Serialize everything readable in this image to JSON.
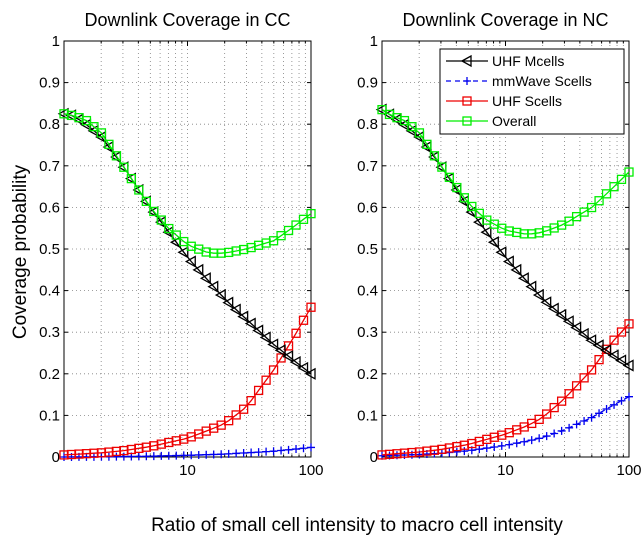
{
  "figure": {
    "ylabel": "Coverage probability",
    "xlabel": "Ratio of small cell intensity to macro cell intensity"
  },
  "chart_data": [
    {
      "type": "line",
      "title": "Downlink Coverage in CC",
      "xscale": "log",
      "xlim": [
        1,
        100
      ],
      "ylim": [
        0,
        1
      ],
      "xticks": [
        10,
        100
      ],
      "yticks": [
        0,
        0.1,
        0.2,
        0.3,
        0.4,
        0.5,
        0.6,
        0.7,
        0.8,
        0.9,
        1
      ],
      "ytick_labels": [
        "0",
        "0.1",
        "0.2",
        "0.3",
        "0.4",
        "0.5",
        "0.6",
        "0.7",
        "0.8",
        "0.9",
        "1"
      ],
      "xtick_labels": [
        "10",
        "100"
      ],
      "grid": true,
      "series": [
        {
          "name": "UHF Mcells",
          "color": "#000000",
          "marker": "triangle-left",
          "dash": "solid",
          "x": [
            1,
            1.2,
            1.5,
            2,
            3,
            5,
            10,
            20,
            50,
            100
          ],
          "y": [
            0.825,
            0.82,
            0.8,
            0.77,
            0.7,
            0.6,
            0.48,
            0.38,
            0.27,
            0.2
          ]
        },
        {
          "name": "mmWave Scells",
          "color": "#0000ee",
          "marker": "plus",
          "dash": "dashed",
          "x": [
            1,
            2,
            3,
            5,
            10,
            20,
            30,
            50,
            70,
            100
          ],
          "y": [
            0.0,
            0.0005,
            0.001,
            0.002,
            0.004,
            0.007,
            0.01,
            0.014,
            0.018,
            0.023
          ]
        },
        {
          "name": "UHF Scells",
          "color": "#ee0000",
          "marker": "square",
          "dash": "solid",
          "x": [
            1,
            2,
            3,
            5,
            10,
            15,
            20,
            30,
            50,
            70,
            100
          ],
          "y": [
            0.005,
            0.01,
            0.015,
            0.025,
            0.045,
            0.065,
            0.08,
            0.12,
            0.21,
            0.28,
            0.36
          ]
        },
        {
          "name": "Overall",
          "color": "#00ee00",
          "marker": "square",
          "dash": "solid",
          "x": [
            1,
            1.2,
            1.5,
            2,
            3,
            5,
            7,
            10,
            15,
            20,
            30,
            50,
            70,
            100
          ],
          "y": [
            0.825,
            0.82,
            0.81,
            0.78,
            0.7,
            0.6,
            0.55,
            0.51,
            0.49,
            0.49,
            0.5,
            0.52,
            0.55,
            0.585
          ]
        }
      ]
    },
    {
      "type": "line",
      "title": "Downlink Coverage in NC",
      "xscale": "log",
      "xlim": [
        1,
        100
      ],
      "ylim": [
        0,
        1
      ],
      "xticks": [
        10,
        100
      ],
      "yticks": [
        0,
        0.1,
        0.2,
        0.3,
        0.4,
        0.5,
        0.6,
        0.7,
        0.8,
        0.9,
        1
      ],
      "ytick_labels": [
        "0",
        "0.1",
        "0.2",
        "0.3",
        "0.4",
        "0.5",
        "0.6",
        "0.7",
        "0.8",
        "0.9",
        "1"
      ],
      "xtick_labels": [
        "10",
        "100"
      ],
      "grid": true,
      "legend": "top-right",
      "series": [
        {
          "name": "UHF Mcells",
          "color": "#000000",
          "marker": "triangle-left",
          "dash": "solid",
          "x": [
            1,
            1.2,
            1.5,
            2,
            3,
            5,
            10,
            20,
            50,
            100
          ],
          "y": [
            0.835,
            0.82,
            0.8,
            0.77,
            0.7,
            0.6,
            0.48,
            0.38,
            0.28,
            0.22
          ]
        },
        {
          "name": "mmWave Scells",
          "color": "#0000ee",
          "marker": "plus",
          "dash": "dashed",
          "x": [
            1,
            2,
            3,
            5,
            10,
            15,
            20,
            30,
            50,
            70,
            100
          ],
          "y": [
            0.003,
            0.006,
            0.009,
            0.015,
            0.028,
            0.038,
            0.047,
            0.065,
            0.095,
            0.12,
            0.145
          ]
        },
        {
          "name": "UHF Scells",
          "color": "#ee0000",
          "marker": "square",
          "dash": "solid",
          "x": [
            1,
            2,
            3,
            5,
            10,
            15,
            20,
            30,
            50,
            70,
            100
          ],
          "y": [
            0.005,
            0.012,
            0.018,
            0.03,
            0.055,
            0.075,
            0.095,
            0.14,
            0.21,
            0.27,
            0.32
          ]
        },
        {
          "name": "Overall",
          "color": "#00ee00",
          "marker": "square",
          "dash": "solid",
          "x": [
            1,
            1.2,
            1.5,
            2,
            3,
            5,
            7,
            10,
            15,
            20,
            30,
            50,
            70,
            100
          ],
          "y": [
            0.835,
            0.82,
            0.81,
            0.78,
            0.7,
            0.61,
            0.57,
            0.545,
            0.535,
            0.54,
            0.56,
            0.6,
            0.64,
            0.685
          ]
        }
      ]
    }
  ]
}
